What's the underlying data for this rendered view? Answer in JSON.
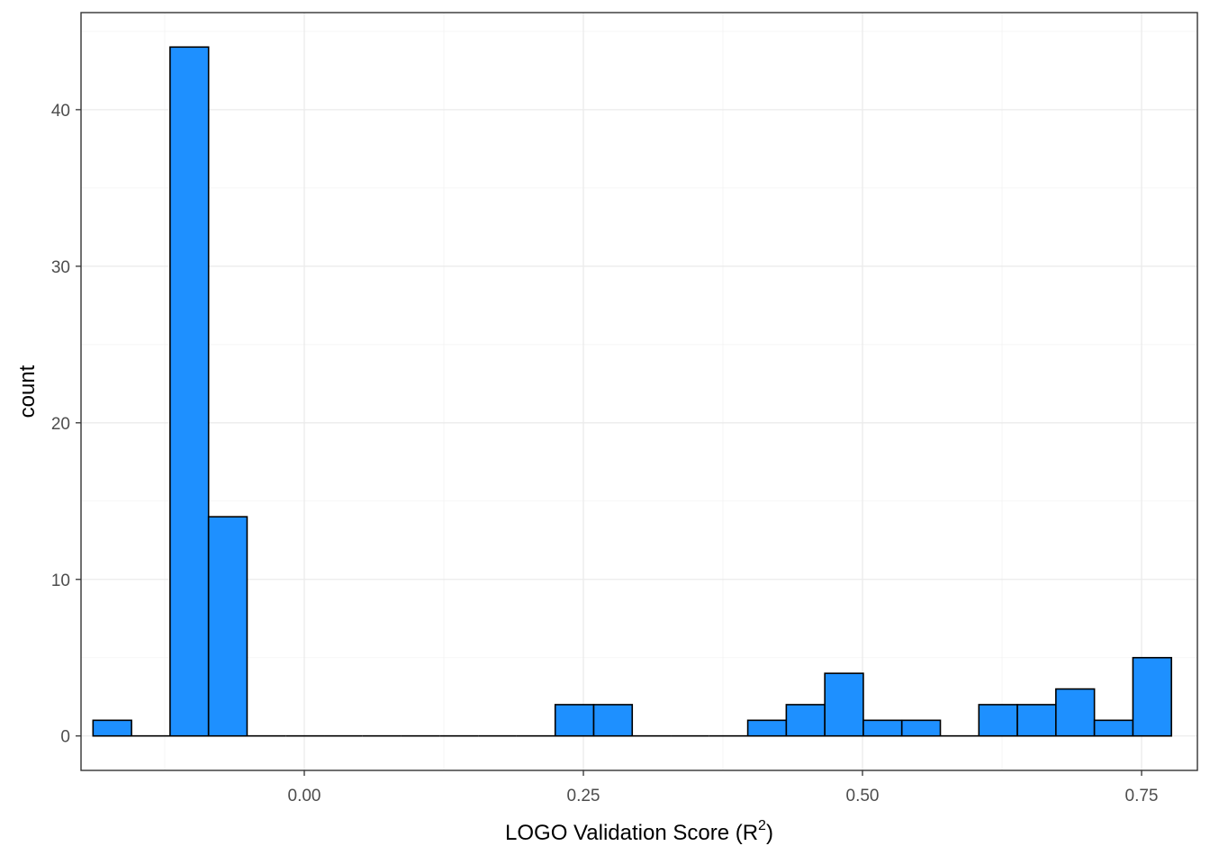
{
  "chart_data": {
    "type": "bar",
    "subtype": "histogram",
    "xlabel": "LOGO Validation Score (R",
    "xlabel_superscript": "2",
    "xlabel_suffix": ")",
    "ylabel": "count",
    "xlim": [
      -0.2,
      0.8
    ],
    "ylim": [
      -2.2,
      46.2
    ],
    "bin_width": 0.0345,
    "x_ticks": [
      0.0,
      0.25,
      0.5,
      0.75
    ],
    "x_tick_labels": [
      "0.00",
      "0.25",
      "0.50",
      "0.75"
    ],
    "y_ticks": [
      0,
      10,
      20,
      30,
      40
    ],
    "y_tick_labels": [
      "0",
      "10",
      "20",
      "30",
      "40"
    ],
    "bins": [
      {
        "x": -0.172,
        "count": 1
      },
      {
        "x": -0.1375,
        "count": 0
      },
      {
        "x": -0.103,
        "count": 44
      },
      {
        "x": -0.0685,
        "count": 14
      },
      {
        "x": -0.034,
        "count": 0
      },
      {
        "x": 0.0005,
        "count": 0
      },
      {
        "x": 0.035,
        "count": 0
      },
      {
        "x": 0.0695,
        "count": 0
      },
      {
        "x": 0.104,
        "count": 0
      },
      {
        "x": 0.1385,
        "count": 0
      },
      {
        "x": 0.173,
        "count": 0
      },
      {
        "x": 0.2075,
        "count": 0
      },
      {
        "x": 0.242,
        "count": 2
      },
      {
        "x": 0.2765,
        "count": 2
      },
      {
        "x": 0.311,
        "count": 0
      },
      {
        "x": 0.3455,
        "count": 0
      },
      {
        "x": 0.38,
        "count": 0
      },
      {
        "x": 0.4145,
        "count": 1
      },
      {
        "x": 0.449,
        "count": 2
      },
      {
        "x": 0.4835,
        "count": 4
      },
      {
        "x": 0.518,
        "count": 1
      },
      {
        "x": 0.5525,
        "count": 1
      },
      {
        "x": 0.587,
        "count": 0
      },
      {
        "x": 0.6215,
        "count": 2
      },
      {
        "x": 0.656,
        "count": 2
      },
      {
        "x": 0.6905,
        "count": 3
      },
      {
        "x": 0.725,
        "count": 1
      },
      {
        "x": 0.7595,
        "count": 5
      }
    ],
    "grid": true,
    "colors": {
      "bar_fill": "#1e90ff",
      "bar_stroke": "#000000",
      "panel_border": "#333333"
    }
  }
}
